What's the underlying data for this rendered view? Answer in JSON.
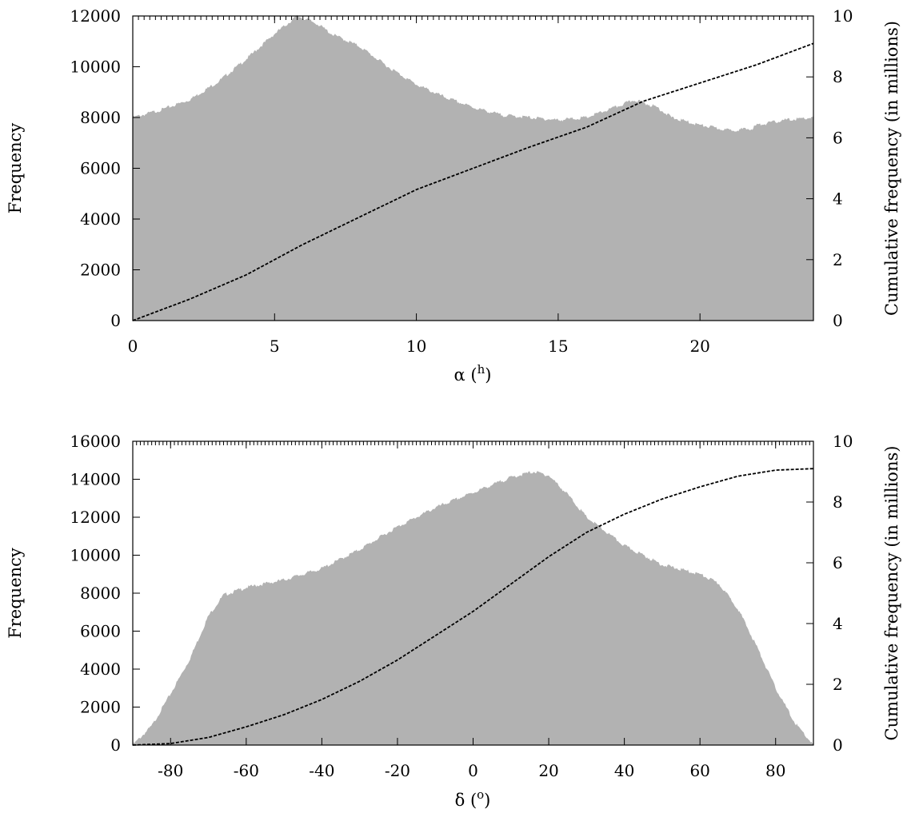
{
  "chart_data": [
    {
      "type": "area",
      "xlabel_main": "α (",
      "xlabel_sup": "h",
      "xlabel_end": ")",
      "ylabel": "Frequency",
      "y2label": "Cumulative frequency (in millions)",
      "xlim": [
        0,
        24
      ],
      "ylim": [
        0,
        12000
      ],
      "y2lim": [
        0,
        10
      ],
      "xticks": [
        0,
        5,
        10,
        15,
        20
      ],
      "xtick_labels": [
        "0",
        "5",
        "10",
        "15",
        "20"
      ],
      "yticks": [
        0,
        2000,
        4000,
        6000,
        8000,
        10000,
        12000
      ],
      "ytick_labels": [
        "0",
        "2000",
        "4000",
        "6000",
        "8000",
        "10000",
        "12000"
      ],
      "y2ticks": [
        0,
        2,
        4,
        6,
        8,
        10
      ],
      "y2tick_labels": [
        "0",
        "2",
        "4",
        "6",
        "8",
        "10"
      ],
      "series": [
        {
          "kind": "histogram",
          "x": [
            0,
            1,
            2,
            3,
            4,
            5,
            5.8,
            6.5,
            7,
            8,
            9,
            10,
            11,
            12,
            13,
            14,
            15,
            16,
            17,
            17.7,
            18.5,
            19,
            20,
            21,
            21.8,
            22,
            23,
            24
          ],
          "y": [
            8000,
            8300,
            8700,
            9400,
            10300,
            11300,
            12000,
            11700,
            11300,
            10800,
            10000,
            9300,
            8800,
            8400,
            8100,
            8000,
            7900,
            8000,
            8400,
            8700,
            8400,
            8000,
            7700,
            7500,
            7550,
            7700,
            7900,
            8000
          ]
        },
        {
          "kind": "cumulative",
          "x": [
            0,
            2,
            4,
            5,
            6,
            8,
            10,
            12,
            14,
            16,
            18,
            20,
            22,
            24
          ],
          "y": [
            0,
            0.7,
            1.5,
            2.0,
            2.5,
            3.4,
            4.3,
            5.0,
            5.7,
            6.35,
            7.2,
            7.8,
            8.4,
            9.1
          ]
        }
      ]
    },
    {
      "type": "area",
      "xlabel_main": "δ (",
      "xlabel_sup": "o",
      "xlabel_end": ")",
      "ylabel": "Frequency",
      "y2label": "Cumulative frequency (in millions)",
      "xlim": [
        -90,
        90
      ],
      "ylim": [
        0,
        16000
      ],
      "y2lim": [
        0,
        10
      ],
      "xticks": [
        -80,
        -60,
        -40,
        -20,
        0,
        20,
        40,
        60,
        80
      ],
      "xtick_labels": [
        "-80",
        "-60",
        "-40",
        "-20",
        "0",
        "20",
        "40",
        "60",
        "80"
      ],
      "yticks": [
        0,
        2000,
        4000,
        6000,
        8000,
        10000,
        12000,
        14000,
        16000
      ],
      "ytick_labels": [
        "0",
        "2000",
        "4000",
        "6000",
        "8000",
        "10000",
        "12000",
        "14000",
        "16000"
      ],
      "y2ticks": [
        0,
        2,
        4,
        6,
        8,
        10
      ],
      "y2tick_labels": [
        "0",
        "2",
        "4",
        "6",
        "8",
        "10"
      ],
      "series": [
        {
          "kind": "histogram",
          "x": [
            -90,
            -85,
            -80,
            -75,
            -70,
            -66,
            -60,
            -50,
            -40,
            -30,
            -20,
            -10,
            0,
            10,
            16,
            20,
            25,
            30,
            40,
            50,
            60,
            65,
            70,
            75,
            80,
            85,
            90
          ],
          "y": [
            0,
            1000,
            2700,
            4500,
            6800,
            7900,
            8300,
            8700,
            9300,
            10300,
            11500,
            12500,
            13300,
            14100,
            14400,
            14200,
            13200,
            12000,
            10500,
            9500,
            9000,
            8500,
            7200,
            5200,
            3000,
            1200,
            0
          ]
        },
        {
          "kind": "cumulative",
          "x": [
            -90,
            -80,
            -70,
            -60,
            -50,
            -40,
            -30,
            -20,
            -10,
            0,
            10,
            20,
            30,
            40,
            50,
            60,
            70,
            80,
            90
          ],
          "y": [
            0,
            0.05,
            0.25,
            0.6,
            1.0,
            1.5,
            2.1,
            2.8,
            3.6,
            4.4,
            5.3,
            6.2,
            7.0,
            7.6,
            8.1,
            8.5,
            8.85,
            9.05,
            9.1
          ]
        }
      ]
    }
  ]
}
